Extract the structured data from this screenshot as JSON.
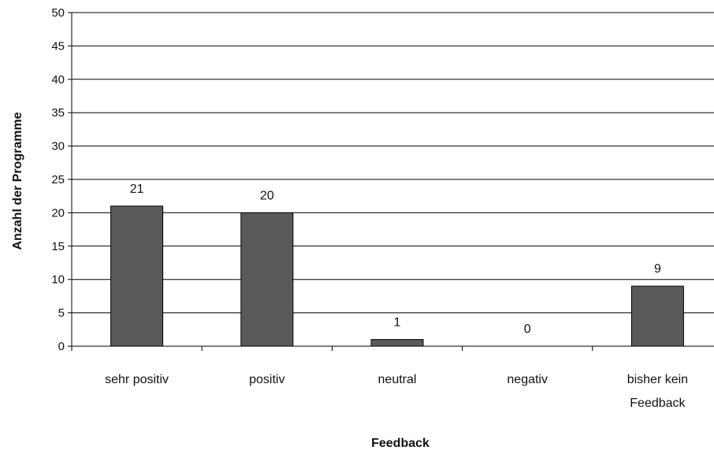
{
  "chart_data": {
    "type": "bar",
    "title": "",
    "xlabel": "Feedback",
    "ylabel": "Anzahl der Programme",
    "categories": [
      "sehr positiv",
      "positiv",
      "neutral",
      "negativ",
      "bisher kein Feedback"
    ],
    "category_lines": [
      [
        "sehr positiv"
      ],
      [
        "positiv"
      ],
      [
        "neutral"
      ],
      [
        "negativ"
      ],
      [
        "bisher kein",
        "Feedback"
      ]
    ],
    "values": [
      21,
      20,
      1,
      0,
      9
    ],
    "data_labels": [
      "21",
      "20",
      "1",
      "0",
      "9"
    ],
    "ylim": [
      0,
      50
    ],
    "yticks": [
      0,
      5,
      10,
      15,
      20,
      25,
      30,
      35,
      40,
      45,
      50
    ],
    "grid": true,
    "legend": "none",
    "colors": {
      "bar": "#595959",
      "bar_edge": "#000000",
      "grid": "#000000",
      "axis": "#000000"
    }
  }
}
